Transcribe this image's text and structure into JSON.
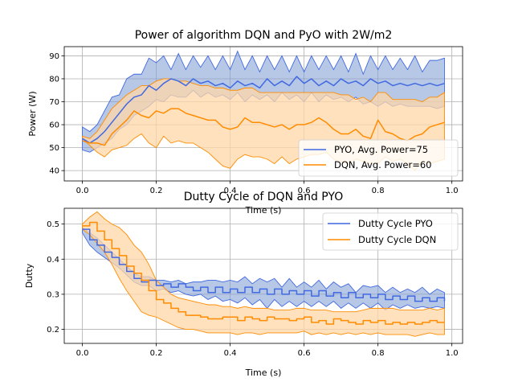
{
  "colors": {
    "pyo": "#4169e1",
    "pyo_fill": "#7b9bd1",
    "dqn": "#ff8c00",
    "dqn_fill": "#ffd7a8",
    "grid": "#b0b0b0"
  },
  "chart_data": [
    {
      "type": "area",
      "title": "Power of algorithm DQN and PyO with 2W/m2",
      "xlabel": "Time (s)",
      "ylabel": "Power (W)",
      "xlim": [
        -0.049,
        1.029
      ],
      "ylim": [
        35.5,
        94
      ],
      "xticks": [
        "0.0",
        "0.2",
        "0.4",
        "0.6",
        "0.8",
        "1.0"
      ],
      "xtick_values": [
        0,
        0.2,
        0.4,
        0.6,
        0.8,
        1.0
      ],
      "yticks": [
        "40",
        "50",
        "60",
        "70",
        "80",
        "90"
      ],
      "ytick_values": [
        40,
        50,
        60,
        70,
        80,
        90
      ],
      "grid": true,
      "legend_position": "lower-right",
      "x": [
        0.0,
        0.02,
        0.04,
        0.06,
        0.08,
        0.1,
        0.12,
        0.14,
        0.16,
        0.18,
        0.2,
        0.22,
        0.24,
        0.26,
        0.28,
        0.3,
        0.32,
        0.34,
        0.36,
        0.38,
        0.4,
        0.42,
        0.44,
        0.46,
        0.48,
        0.5,
        0.52,
        0.54,
        0.56,
        0.58,
        0.6,
        0.62,
        0.64,
        0.66,
        0.68,
        0.7,
        0.72,
        0.74,
        0.76,
        0.78,
        0.8,
        0.82,
        0.84,
        0.86,
        0.88,
        0.9,
        0.92,
        0.94,
        0.96,
        0.98
      ],
      "series": [
        {
          "name": "PYO, Avg. Power=75",
          "color": "#4169e1",
          "values": [
            54,
            52,
            54,
            57,
            61,
            65,
            69,
            72,
            73,
            77,
            75,
            78,
            80,
            79,
            77,
            80,
            78,
            79,
            77,
            78,
            76,
            79,
            77,
            78,
            76,
            80,
            77,
            79,
            77,
            81,
            78,
            80,
            77,
            79,
            77,
            80,
            78,
            79,
            77,
            80,
            78,
            79,
            77,
            78,
            77,
            78,
            77,
            78,
            77,
            78
          ],
          "upper": [
            59,
            57,
            60,
            66,
            72,
            73,
            80,
            82,
            82,
            89,
            87,
            90,
            84,
            91,
            84,
            90,
            85,
            90,
            84,
            90,
            84,
            92,
            84,
            90,
            83,
            90,
            84,
            90,
            83,
            90,
            83,
            90,
            84,
            90,
            84,
            90,
            83,
            91,
            82,
            90,
            84,
            90,
            84,
            89,
            84,
            90,
            83,
            88,
            88,
            89
          ],
          "lower": [
            49,
            48,
            50,
            52,
            54,
            58,
            60,
            64,
            66,
            68,
            71,
            70,
            73,
            72,
            72,
            75,
            72,
            74,
            72,
            73,
            71,
            74,
            70,
            73,
            71,
            73,
            70,
            74,
            71,
            73,
            70,
            74,
            70,
            73,
            71,
            72,
            70,
            72,
            69,
            70,
            68,
            70,
            68,
            69,
            68,
            68,
            68,
            68,
            67,
            68
          ]
        },
        {
          "name": "DQN, Avg. Power=60",
          "color": "#ff8c00",
          "values": [
            53,
            52,
            52,
            51,
            56,
            59,
            62,
            66,
            64,
            63,
            66,
            65,
            67,
            67,
            65,
            64,
            63,
            62,
            62,
            59,
            58,
            59,
            63,
            61,
            61,
            60,
            59,
            60,
            58,
            60,
            60,
            61,
            63,
            61,
            58,
            56,
            56,
            58,
            55,
            54,
            62,
            57,
            56,
            54,
            53,
            55,
            56,
            59,
            60,
            61
          ],
          "upper": [
            55,
            54,
            57,
            62,
            67,
            70,
            73,
            75,
            77,
            77,
            79,
            80,
            80,
            79,
            79,
            78,
            77,
            77,
            76,
            76,
            75,
            75,
            76,
            76,
            74,
            74,
            74,
            74,
            74,
            74,
            74,
            74,
            74,
            74,
            74,
            73,
            73,
            71,
            72,
            70,
            74,
            74,
            71,
            71,
            71,
            71,
            70,
            72,
            72,
            74
          ],
          "lower": [
            54,
            51,
            48,
            46,
            49,
            50,
            51,
            54,
            56,
            52,
            50,
            55,
            52,
            53,
            52,
            52,
            50,
            48,
            45,
            42,
            41,
            45,
            47,
            46,
            46,
            45,
            43,
            46,
            43,
            45,
            46,
            47,
            47,
            48,
            45,
            44,
            43,
            45,
            44,
            43,
            43,
            46,
            44,
            45,
            43,
            40,
            44,
            43,
            44,
            45
          ]
        }
      ]
    },
    {
      "type": "area",
      "title": "Dutty Cycle of DQN and PYO",
      "xlabel": "Time (s)",
      "ylabel": "Dutty",
      "xlim": [
        -0.049,
        1.029
      ],
      "ylim": [
        0.16,
        0.545
      ],
      "xticks": [
        "0.0",
        "0.2",
        "0.4",
        "0.6",
        "0.8",
        "1.0"
      ],
      "xtick_values": [
        0,
        0.2,
        0.4,
        0.6,
        0.8,
        1.0
      ],
      "yticks": [
        "0.2",
        "0.3",
        "0.4",
        "0.5"
      ],
      "ytick_values": [
        0.2,
        0.3,
        0.4,
        0.5
      ],
      "grid": true,
      "legend_position": "upper-right",
      "x": [
        0.0,
        0.02,
        0.04,
        0.06,
        0.08,
        0.1,
        0.12,
        0.14,
        0.16,
        0.18,
        0.2,
        0.22,
        0.24,
        0.26,
        0.28,
        0.3,
        0.32,
        0.34,
        0.36,
        0.38,
        0.4,
        0.42,
        0.44,
        0.46,
        0.48,
        0.5,
        0.52,
        0.54,
        0.56,
        0.58,
        0.6,
        0.62,
        0.64,
        0.66,
        0.68,
        0.7,
        0.72,
        0.74,
        0.76,
        0.78,
        0.8,
        0.82,
        0.84,
        0.86,
        0.88,
        0.9,
        0.92,
        0.94,
        0.96,
        0.98
      ],
      "series": [
        {
          "name": "Dutty Cycle PYO",
          "color": "#4169e1",
          "values": [
            0.485,
            0.455,
            0.44,
            0.42,
            0.405,
            0.385,
            0.365,
            0.345,
            0.335,
            0.34,
            0.325,
            0.33,
            0.32,
            0.33,
            0.32,
            0.31,
            0.32,
            0.305,
            0.32,
            0.305,
            0.315,
            0.305,
            0.32,
            0.305,
            0.315,
            0.3,
            0.315,
            0.3,
            0.31,
            0.3,
            0.31,
            0.295,
            0.31,
            0.295,
            0.305,
            0.29,
            0.305,
            0.29,
            0.3,
            0.29,
            0.3,
            0.285,
            0.295,
            0.285,
            0.295,
            0.28,
            0.29,
            0.28,
            0.29,
            0.28
          ],
          "upper": [
            0.49,
            0.475,
            0.46,
            0.44,
            0.42,
            0.4,
            0.38,
            0.36,
            0.35,
            0.35,
            0.34,
            0.34,
            0.335,
            0.34,
            0.33,
            0.335,
            0.335,
            0.34,
            0.34,
            0.335,
            0.34,
            0.335,
            0.35,
            0.33,
            0.345,
            0.335,
            0.345,
            0.32,
            0.345,
            0.32,
            0.335,
            0.32,
            0.34,
            0.315,
            0.335,
            0.32,
            0.33,
            0.305,
            0.325,
            0.32,
            0.325,
            0.305,
            0.32,
            0.305,
            0.315,
            0.305,
            0.32,
            0.3,
            0.315,
            0.305
          ],
          "lower": [
            0.475,
            0.44,
            0.42,
            0.405,
            0.39,
            0.375,
            0.355,
            0.335,
            0.325,
            0.325,
            0.31,
            0.315,
            0.305,
            0.31,
            0.3,
            0.295,
            0.3,
            0.285,
            0.295,
            0.28,
            0.285,
            0.275,
            0.29,
            0.27,
            0.285,
            0.26,
            0.285,
            0.265,
            0.28,
            0.265,
            0.28,
            0.265,
            0.28,
            0.265,
            0.28,
            0.26,
            0.275,
            0.26,
            0.275,
            0.26,
            0.275,
            0.255,
            0.27,
            0.26,
            0.27,
            0.26,
            0.265,
            0.26,
            0.265,
            0.26
          ]
        },
        {
          "name": "Dutty Cycle DQN",
          "color": "#ff8c00",
          "values": [
            0.495,
            0.505,
            0.48,
            0.455,
            0.43,
            0.41,
            0.38,
            0.36,
            0.34,
            0.31,
            0.285,
            0.275,
            0.26,
            0.25,
            0.24,
            0.24,
            0.235,
            0.23,
            0.23,
            0.235,
            0.235,
            0.225,
            0.235,
            0.23,
            0.225,
            0.235,
            0.23,
            0.23,
            0.225,
            0.23,
            0.235,
            0.22,
            0.225,
            0.215,
            0.23,
            0.225,
            0.22,
            0.215,
            0.225,
            0.22,
            0.225,
            0.215,
            0.22,
            0.215,
            0.22,
            0.215,
            0.22,
            0.225,
            0.22,
            0.22
          ],
          "upper": [
            0.5,
            0.52,
            0.535,
            0.515,
            0.5,
            0.49,
            0.47,
            0.44,
            0.42,
            0.385,
            0.34,
            0.32,
            0.3,
            0.29,
            0.285,
            0.28,
            0.275,
            0.27,
            0.27,
            0.265,
            0.265,
            0.26,
            0.265,
            0.26,
            0.26,
            0.26,
            0.255,
            0.255,
            0.255,
            0.26,
            0.26,
            0.255,
            0.255,
            0.255,
            0.25,
            0.25,
            0.25,
            0.25,
            0.255,
            0.26,
            0.26,
            0.26,
            0.26,
            0.255,
            0.255,
            0.255,
            0.255,
            0.26,
            0.255,
            0.26
          ],
          "lower": [
            0.485,
            0.47,
            0.445,
            0.42,
            0.385,
            0.345,
            0.31,
            0.28,
            0.25,
            0.24,
            0.235,
            0.225,
            0.215,
            0.205,
            0.2,
            0.2,
            0.195,
            0.19,
            0.19,
            0.19,
            0.19,
            0.185,
            0.19,
            0.19,
            0.185,
            0.19,
            0.19,
            0.19,
            0.19,
            0.19,
            0.195,
            0.185,
            0.19,
            0.185,
            0.19,
            0.185,
            0.19,
            0.185,
            0.19,
            0.185,
            0.19,
            0.185,
            0.185,
            0.185,
            0.185,
            0.18,
            0.185,
            0.19,
            0.185,
            0.185
          ]
        }
      ]
    }
  ]
}
